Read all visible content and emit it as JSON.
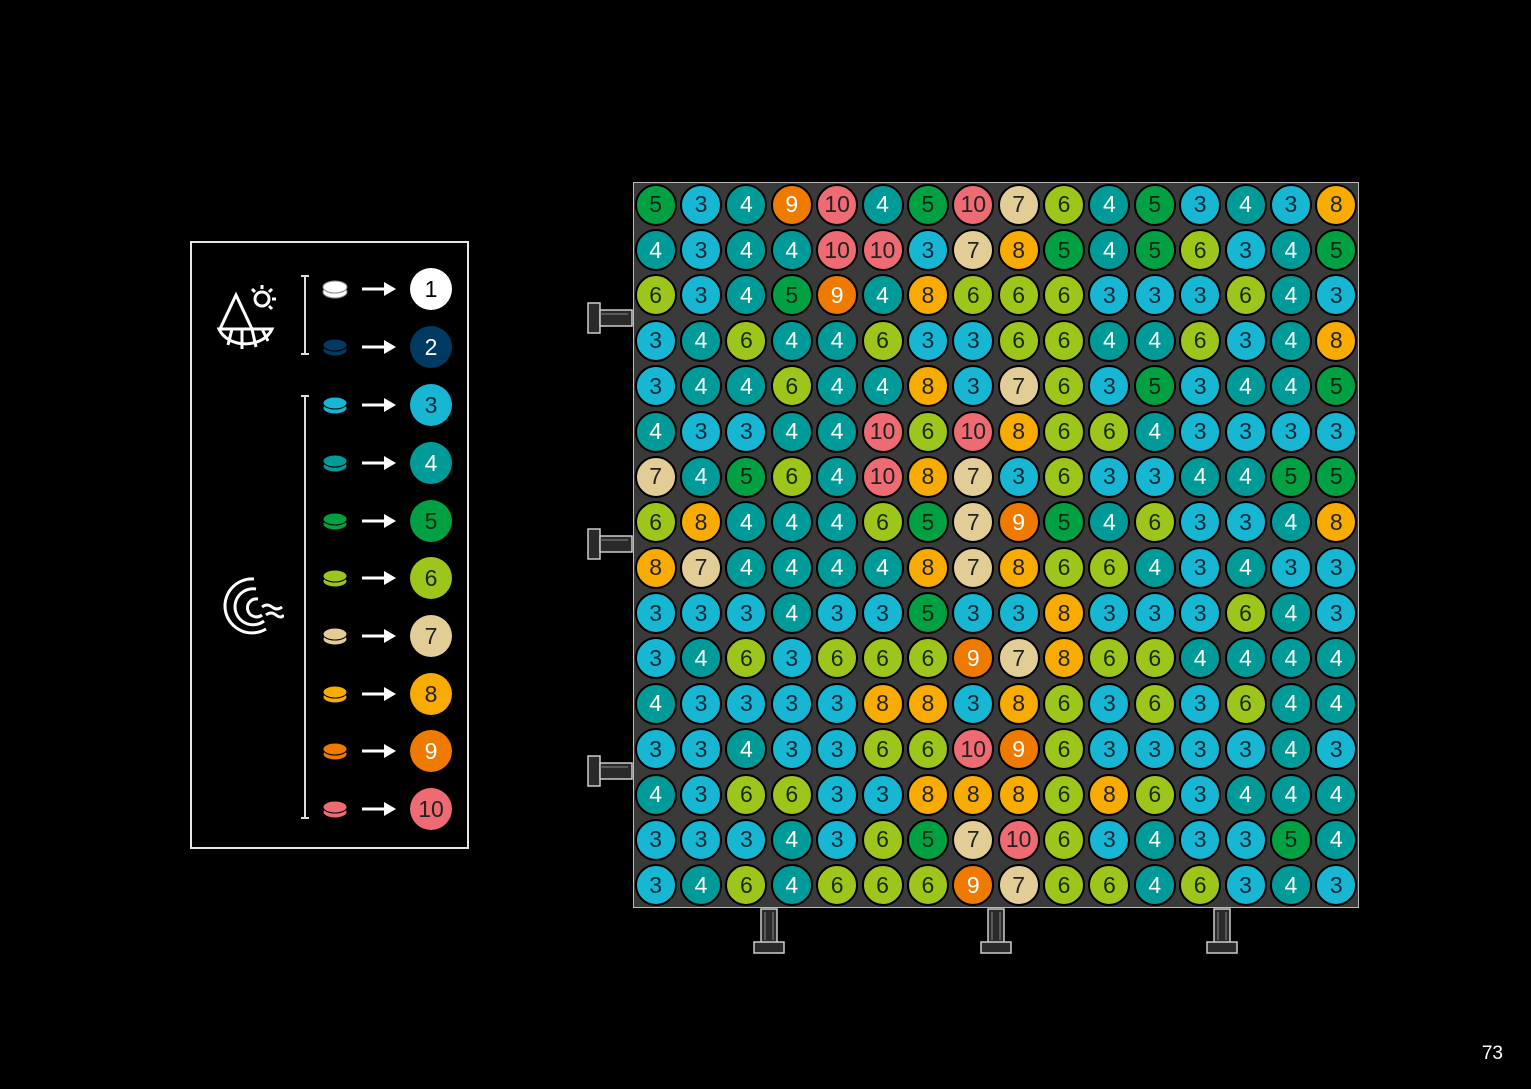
{
  "colors": {
    "1": "#ffffff",
    "2": "#003a63",
    "3": "#17b6d3",
    "4": "#009b99",
    "5": "#00a043",
    "6": "#9ec51c",
    "7": "#e3cd97",
    "8": "#f8ab00",
    "9": "#ef7a00",
    "10": "#ef6b73"
  },
  "text_colors": {
    "1": "#000",
    "2": "#fff",
    "3": "#0a2a3a",
    "4": "#fff",
    "5": "#0a2a10",
    "6": "#1a2a00",
    "7": "#222",
    "8": "#222",
    "9": "#fff",
    "10": "#222"
  },
  "legend": {
    "groups": [
      {
        "icon": "mountain-sun-icon",
        "items": [
          "1",
          "2"
        ]
      },
      {
        "icon": "ocean-wave-icon",
        "items": [
          "3",
          "4",
          "5",
          "6",
          "7",
          "8",
          "9",
          "10"
        ]
      }
    ]
  },
  "grid": [
    [
      5,
      3,
      4,
      9,
      10,
      4,
      5,
      10,
      7,
      6,
      4,
      5,
      3,
      4,
      3,
      8
    ],
    [
      4,
      3,
      4,
      4,
      10,
      10,
      3,
      7,
      8,
      5,
      4,
      5,
      6,
      3,
      4,
      5
    ],
    [
      6,
      3,
      4,
      5,
      9,
      4,
      8,
      6,
      6,
      6,
      3,
      3,
      3,
      6,
      4,
      3
    ],
    [
      3,
      4,
      6,
      4,
      4,
      6,
      3,
      3,
      6,
      6,
      4,
      4,
      6,
      3,
      4,
      8
    ],
    [
      3,
      4,
      4,
      6,
      4,
      4,
      8,
      3,
      7,
      6,
      3,
      5,
      3,
      4,
      4,
      5
    ],
    [
      4,
      3,
      3,
      4,
      4,
      10,
      6,
      10,
      8,
      6,
      6,
      4,
      3,
      3,
      3,
      3
    ],
    [
      7,
      4,
      5,
      6,
      4,
      10,
      8,
      7,
      3,
      6,
      3,
      3,
      4,
      4,
      5,
      5
    ],
    [
      6,
      8,
      4,
      4,
      4,
      6,
      5,
      7,
      9,
      5,
      4,
      6,
      3,
      3,
      4,
      8
    ],
    [
      8,
      7,
      4,
      4,
      4,
      4,
      8,
      7,
      8,
      6,
      6,
      4,
      3,
      4,
      3,
      3
    ],
    [
      3,
      3,
      3,
      4,
      3,
      3,
      5,
      3,
      3,
      8,
      3,
      3,
      3,
      6,
      4,
      3
    ],
    [
      3,
      4,
      6,
      3,
      6,
      6,
      6,
      9,
      7,
      8,
      6,
      6,
      4,
      4,
      4,
      4
    ],
    [
      4,
      3,
      3,
      3,
      3,
      8,
      8,
      3,
      8,
      6,
      3,
      6,
      3,
      6,
      4,
      4
    ],
    [
      3,
      3,
      4,
      3,
      3,
      6,
      6,
      10,
      9,
      6,
      3,
      3,
      3,
      3,
      4,
      3
    ],
    [
      4,
      3,
      6,
      6,
      3,
      3,
      8,
      8,
      8,
      6,
      8,
      6,
      3,
      4,
      4,
      4
    ],
    [
      3,
      3,
      3,
      4,
      3,
      6,
      5,
      7,
      10,
      6,
      3,
      4,
      3,
      3,
      5,
      4
    ],
    [
      3,
      4,
      6,
      4,
      6,
      6,
      6,
      9,
      7,
      6,
      6,
      4,
      6,
      3,
      4,
      3
    ]
  ],
  "page_number": "73"
}
